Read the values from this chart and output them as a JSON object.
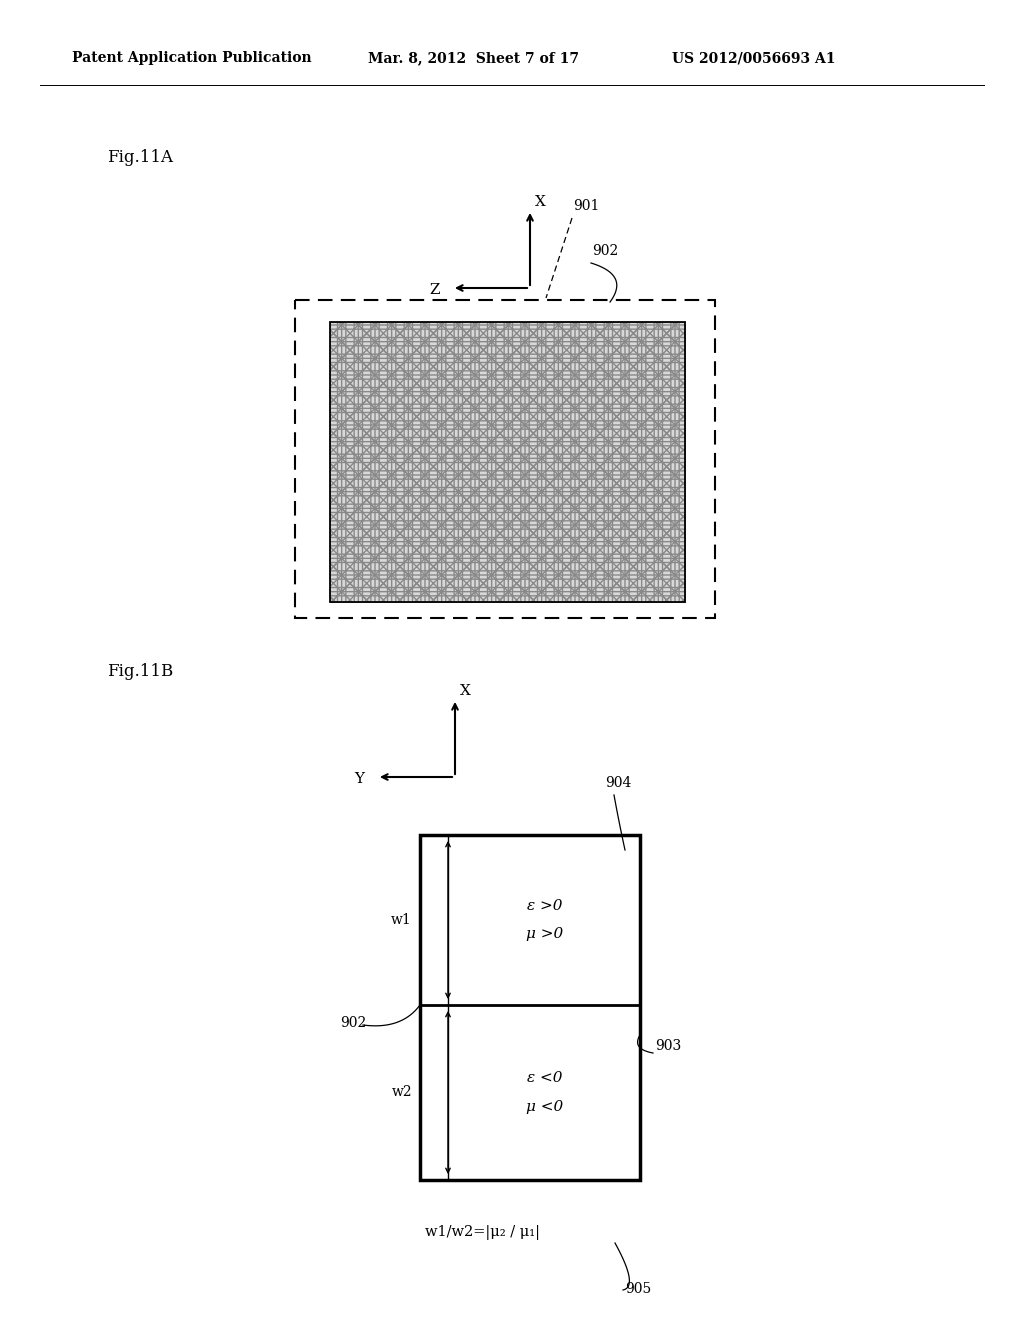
{
  "bg_color": "#ffffff",
  "header_left": "Patent Application Publication",
  "header_mid": "Mar. 8, 2012  Sheet 7 of 17",
  "header_right": "US 2012/0056693 A1",
  "fig11a_label": "Fig.11A",
  "fig11b_label": "Fig.11B",
  "label_901": "901",
  "label_902": "902",
  "label_903": "903",
  "label_904": "904",
  "label_905": "905",
  "axis_x": "X",
  "axis_y": "Y",
  "axis_z": "Z",
  "text_eps_pos": "ε >0",
  "text_mu_pos": "μ >0",
  "text_eps_neg": "ε <0",
  "text_mu_neg": "μ <0",
  "text_w1": "w1",
  "text_w2": "w2",
  "text_formula": "w1/w2=|μ₂ / μ₁|"
}
